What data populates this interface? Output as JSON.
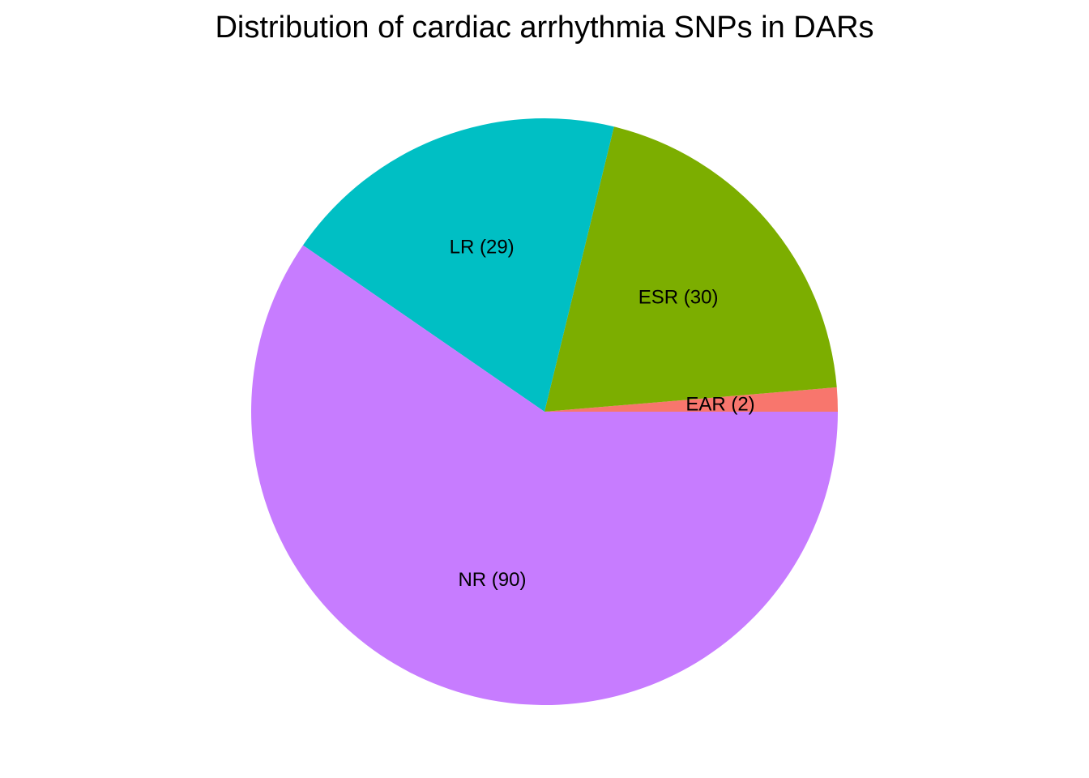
{
  "chart_data": {
    "type": "pie",
    "title": "Distribution of cardiac arrhythmia SNPs in DARs",
    "legend": "none",
    "slices": [
      {
        "category": "EAR",
        "value": 2,
        "label": "EAR (2)",
        "color": "#F8766D"
      },
      {
        "category": "ESR",
        "value": 30,
        "label": "ESR (30)",
        "color": "#7CAE00"
      },
      {
        "category": "LR",
        "value": 29,
        "label": "LR (29)",
        "color": "#00BFC4"
      },
      {
        "category": "NR",
        "value": 90,
        "label": "NR (90)",
        "color": "#C77CFF"
      }
    ]
  }
}
